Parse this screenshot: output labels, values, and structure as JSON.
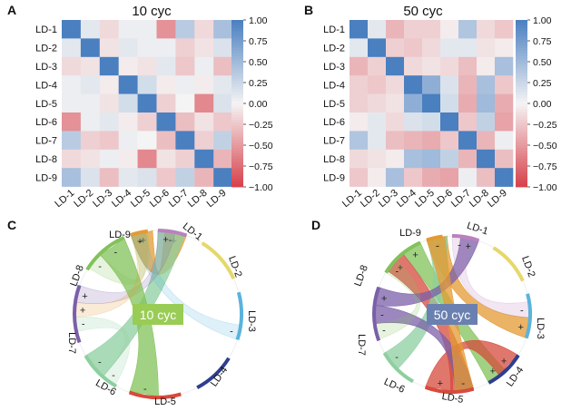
{
  "panels": {
    "A": {
      "label": "A",
      "title": "10 cyc"
    },
    "B": {
      "label": "B",
      "title": "50 cyc"
    },
    "C": {
      "label": "C",
      "center_label": "10 cyc"
    },
    "D": {
      "label": "D",
      "center_label": "50 cyc"
    }
  },
  "colors": {
    "neg": "#d6404a",
    "zero": "#f4f4f4",
    "pos": "#4a7fc0",
    "badge_10": "#99cc55",
    "badge_50": "#6a80b0",
    "LD-1": "#b982bd",
    "LD-2": "#e5d86b",
    "LD-3": "#5bb3dc",
    "LD-4": "#2e3e8f",
    "LD-5": "#d64a3c",
    "LD-6": "#8ecfa0",
    "LD-7": "#7b5fa8",
    "LD-8": "#82c25a",
    "LD-9": "#e49a32"
  },
  "chart_data": [
    {
      "type": "heatmap",
      "title": "10 cyc",
      "labels": [
        "LD-1",
        "LD-2",
        "LD-3",
        "LD-4",
        "LD-5",
        "LD-6",
        "LD-7",
        "LD-8",
        "LD-9"
      ],
      "zlim": [
        -1,
        1
      ],
      "colorbar_ticks": [
        "1.00",
        "0.75",
        "0.50",
        "0.25",
        "0.00",
        "−0.25",
        "−0.50",
        "−0.75",
        "−1.00"
      ],
      "matrix": [
        [
          1.0,
          0.1,
          -0.15,
          0.05,
          0.05,
          -0.55,
          0.35,
          -0.15,
          0.45
        ],
        [
          0.1,
          1.0,
          -0.1,
          0.1,
          0.05,
          0.05,
          -0.2,
          -0.1,
          0.15
        ],
        [
          -0.15,
          -0.1,
          1.0,
          -0.05,
          -0.1,
          0.1,
          -0.25,
          0.05,
          -0.3
        ],
        [
          0.05,
          0.1,
          -0.05,
          1.0,
          0.2,
          -0.05,
          0.05,
          -0.05,
          0.1
        ],
        [
          0.05,
          0.05,
          -0.1,
          0.2,
          1.0,
          -0.2,
          0.0,
          -0.6,
          0.15
        ],
        [
          -0.55,
          0.05,
          0.1,
          -0.05,
          -0.2,
          1.0,
          -0.3,
          -0.1,
          -0.25
        ],
        [
          0.35,
          -0.2,
          -0.25,
          0.05,
          0.0,
          -0.3,
          1.0,
          -0.2,
          0.3
        ],
        [
          -0.15,
          -0.1,
          0.05,
          -0.05,
          -0.6,
          -0.1,
          -0.2,
          1.0,
          -0.35
        ],
        [
          0.45,
          0.15,
          -0.3,
          0.1,
          0.15,
          -0.25,
          0.3,
          -0.35,
          1.0
        ]
      ]
    },
    {
      "type": "heatmap",
      "title": "50 cyc",
      "labels": [
        "LD-1",
        "LD-2",
        "LD-3",
        "LD-4",
        "LD-5",
        "LD-6",
        "LD-7",
        "LD-8",
        "LD-9"
      ],
      "zlim": [
        -1,
        1
      ],
      "colorbar_ticks": [
        "1.00",
        "0.75",
        "0.50",
        "0.25",
        "0.00",
        "−0.25",
        "−0.50",
        "−0.75",
        "−1.00"
      ],
      "matrix": [
        [
          1.0,
          0.1,
          -0.35,
          -0.2,
          -0.2,
          -0.05,
          0.4,
          -0.15,
          -0.25
        ],
        [
          0.1,
          1.0,
          -0.2,
          -0.25,
          -0.15,
          0.1,
          0.1,
          -0.1,
          -0.05
        ],
        [
          -0.35,
          -0.2,
          1.0,
          -0.15,
          -0.1,
          -0.15,
          -0.3,
          -0.05,
          0.45
        ],
        [
          -0.2,
          -0.25,
          -0.15,
          1.0,
          0.6,
          0.15,
          -0.35,
          0.45,
          -0.25
        ],
        [
          -0.2,
          -0.15,
          -0.1,
          0.6,
          1.0,
          0.2,
          -0.4,
          0.5,
          -0.4
        ],
        [
          -0.05,
          0.1,
          -0.15,
          0.15,
          0.2,
          1.0,
          -0.25,
          0.3,
          -0.45
        ],
        [
          0.4,
          0.1,
          -0.3,
          -0.35,
          -0.4,
          -0.25,
          1.0,
          -0.35,
          0.05
        ],
        [
          -0.15,
          -0.1,
          -0.05,
          0.45,
          0.5,
          0.3,
          -0.35,
          1.0,
          -0.3
        ],
        [
          -0.25,
          -0.05,
          0.45,
          -0.25,
          -0.4,
          -0.45,
          0.05,
          -0.3,
          1.0
        ]
      ]
    },
    {
      "type": "chord",
      "title": "10 cyc",
      "nodes": [
        "LD-1",
        "LD-2",
        "LD-3",
        "LD-4",
        "LD-5",
        "LD-6",
        "LD-7",
        "LD-8",
        "LD-9"
      ],
      "links": [
        {
          "source": "LD-9",
          "target": "LD-1",
          "sign": "+",
          "value": 0.45
        },
        {
          "source": "LD-6",
          "target": "LD-1",
          "sign": "-",
          "value": 0.55
        },
        {
          "source": "LD-7",
          "target": "LD-1",
          "sign": "+",
          "value": 0.35
        },
        {
          "source": "LD-8",
          "target": "LD-5",
          "sign": "-",
          "value": 0.6
        },
        {
          "source": "LD-9",
          "target": "LD-7",
          "sign": "+",
          "value": 0.3
        },
        {
          "source": "LD-8",
          "target": "LD-9",
          "sign": "-",
          "value": 0.35
        },
        {
          "source": "LD-6",
          "target": "LD-7",
          "sign": "-",
          "value": 0.3
        },
        {
          "source": "LD-3",
          "target": "LD-9",
          "sign": "-",
          "value": 0.3
        }
      ]
    },
    {
      "type": "chord",
      "title": "50 cyc",
      "nodes": [
        "LD-1",
        "LD-2",
        "LD-3",
        "LD-4",
        "LD-5",
        "LD-6",
        "LD-7",
        "LD-8",
        "LD-9"
      ],
      "links": [
        {
          "source": "LD-9",
          "target": "LD-3",
          "sign": "+",
          "value": 0.45
        },
        {
          "source": "LD-8",
          "target": "LD-4",
          "sign": "+",
          "value": 0.45
        },
        {
          "source": "LD-5",
          "target": "LD-4",
          "sign": "+",
          "value": 0.6
        },
        {
          "source": "LD-5",
          "target": "LD-8",
          "sign": "+",
          "value": 0.5
        },
        {
          "source": "LD-6",
          "target": "LD-9",
          "sign": "-",
          "value": 0.45
        },
        {
          "source": "LD-7",
          "target": "LD-1",
          "sign": "+",
          "value": 0.4
        },
        {
          "source": "LD-7",
          "target": "LD-5",
          "sign": "-",
          "value": 0.4
        },
        {
          "source": "LD-9",
          "target": "LD-5",
          "sign": "-",
          "value": 0.4
        },
        {
          "source": "LD-1",
          "target": "LD-3",
          "sign": "-",
          "value": 0.35
        },
        {
          "source": "LD-8",
          "target": "LD-7",
          "sign": "-",
          "value": 0.35
        }
      ]
    }
  ]
}
